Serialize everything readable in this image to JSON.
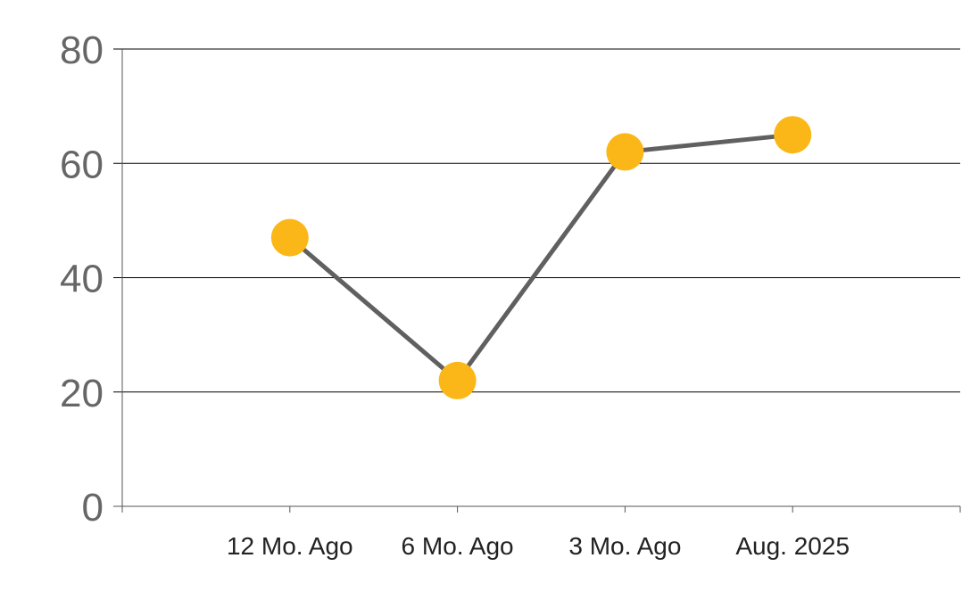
{
  "chart_data": {
    "type": "line",
    "title": "",
    "xlabel": "",
    "ylabel": "",
    "categories": [
      "12 Mo. Ago",
      "6 Mo. Ago",
      "3 Mo. Ago",
      "Aug. 2025"
    ],
    "series": [
      {
        "values": [
          47,
          22,
          62,
          65
        ]
      }
    ],
    "ylim": [
      0,
      80
    ],
    "yticks": [
      0,
      20,
      40,
      60,
      80
    ],
    "grid": true,
    "legend": "none",
    "colors": {
      "line": "#606060",
      "marker": "#FBB718",
      "grid": "#000000",
      "axis": "#555555"
    }
  }
}
